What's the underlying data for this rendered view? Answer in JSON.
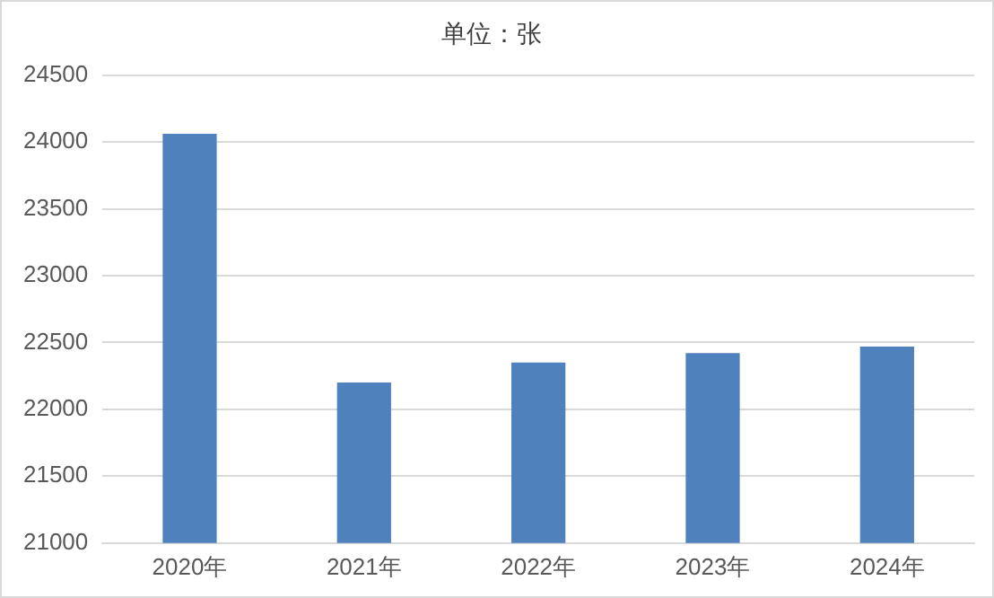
{
  "chart_data": {
    "type": "bar",
    "title": "单位：张",
    "categories": [
      "2020年",
      "2021年",
      "2022年",
      "2023年",
      "2024年"
    ],
    "values": [
      24060,
      22200,
      22350,
      22420,
      22470
    ],
    "color": "#4f81bd",
    "ylim": [
      21000,
      24500
    ],
    "yticks": [
      21000,
      21500,
      22000,
      22500,
      23000,
      23500,
      24000,
      24500
    ],
    "grid": "y",
    "legend": false
  }
}
